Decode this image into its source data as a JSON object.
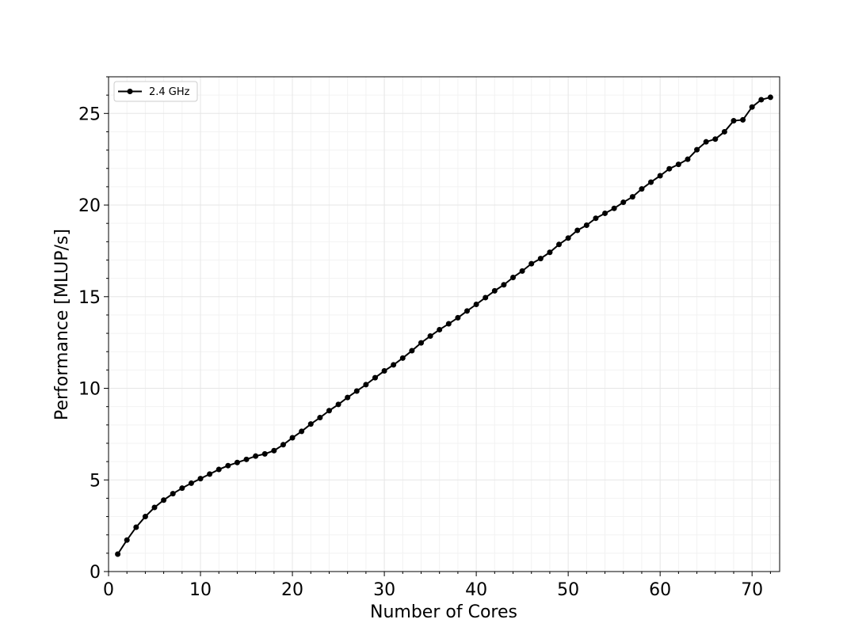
{
  "chart_data": {
    "type": "line",
    "xlabel": "Number of Cores",
    "ylabel": "Performance [MLUP/s]",
    "xlim": [
      0,
      73
    ],
    "ylim": [
      0,
      27
    ],
    "xticks": [
      0,
      10,
      20,
      30,
      40,
      50,
      60,
      70
    ],
    "yticks": [
      0,
      5,
      10,
      15,
      20,
      25
    ],
    "grid": "major and minor",
    "legend_position": "top-left",
    "colors": {
      "line": "#000000",
      "grid": "#e6e6e6"
    },
    "series": [
      {
        "name": "2.4 GHz",
        "x": [
          1,
          2,
          3,
          4,
          5,
          6,
          7,
          8,
          9,
          10,
          11,
          12,
          13,
          14,
          15,
          16,
          17,
          18,
          19,
          20,
          21,
          22,
          23,
          24,
          25,
          26,
          27,
          28,
          29,
          30,
          31,
          32,
          33,
          34,
          35,
          36,
          37,
          38,
          39,
          40,
          41,
          42,
          43,
          44,
          45,
          46,
          47,
          48,
          49,
          50,
          51,
          52,
          53,
          54,
          55,
          56,
          57,
          58,
          59,
          60,
          61,
          62,
          63,
          64,
          65,
          66,
          67,
          68,
          69,
          70,
          71,
          72
        ],
        "y": [
          0.95,
          1.72,
          2.42,
          3.0,
          3.5,
          3.9,
          4.25,
          4.55,
          4.82,
          5.07,
          5.32,
          5.57,
          5.78,
          5.95,
          6.12,
          6.3,
          6.42,
          6.6,
          6.92,
          7.3,
          7.65,
          8.05,
          8.4,
          8.78,
          9.12,
          9.5,
          9.85,
          10.2,
          10.58,
          10.95,
          11.28,
          11.65,
          12.05,
          12.48,
          12.85,
          13.2,
          13.52,
          13.85,
          14.22,
          14.58,
          14.95,
          15.32,
          15.65,
          16.05,
          16.4,
          16.8,
          17.08,
          17.42,
          17.85,
          18.2,
          18.62,
          18.9,
          19.28,
          19.55,
          19.82,
          20.15,
          20.45,
          20.88,
          21.25,
          21.6,
          21.98,
          22.22,
          22.5,
          23.02,
          23.45,
          23.6,
          24.0,
          24.6,
          24.65,
          25.35,
          25.75,
          25.88
        ]
      }
    ]
  }
}
